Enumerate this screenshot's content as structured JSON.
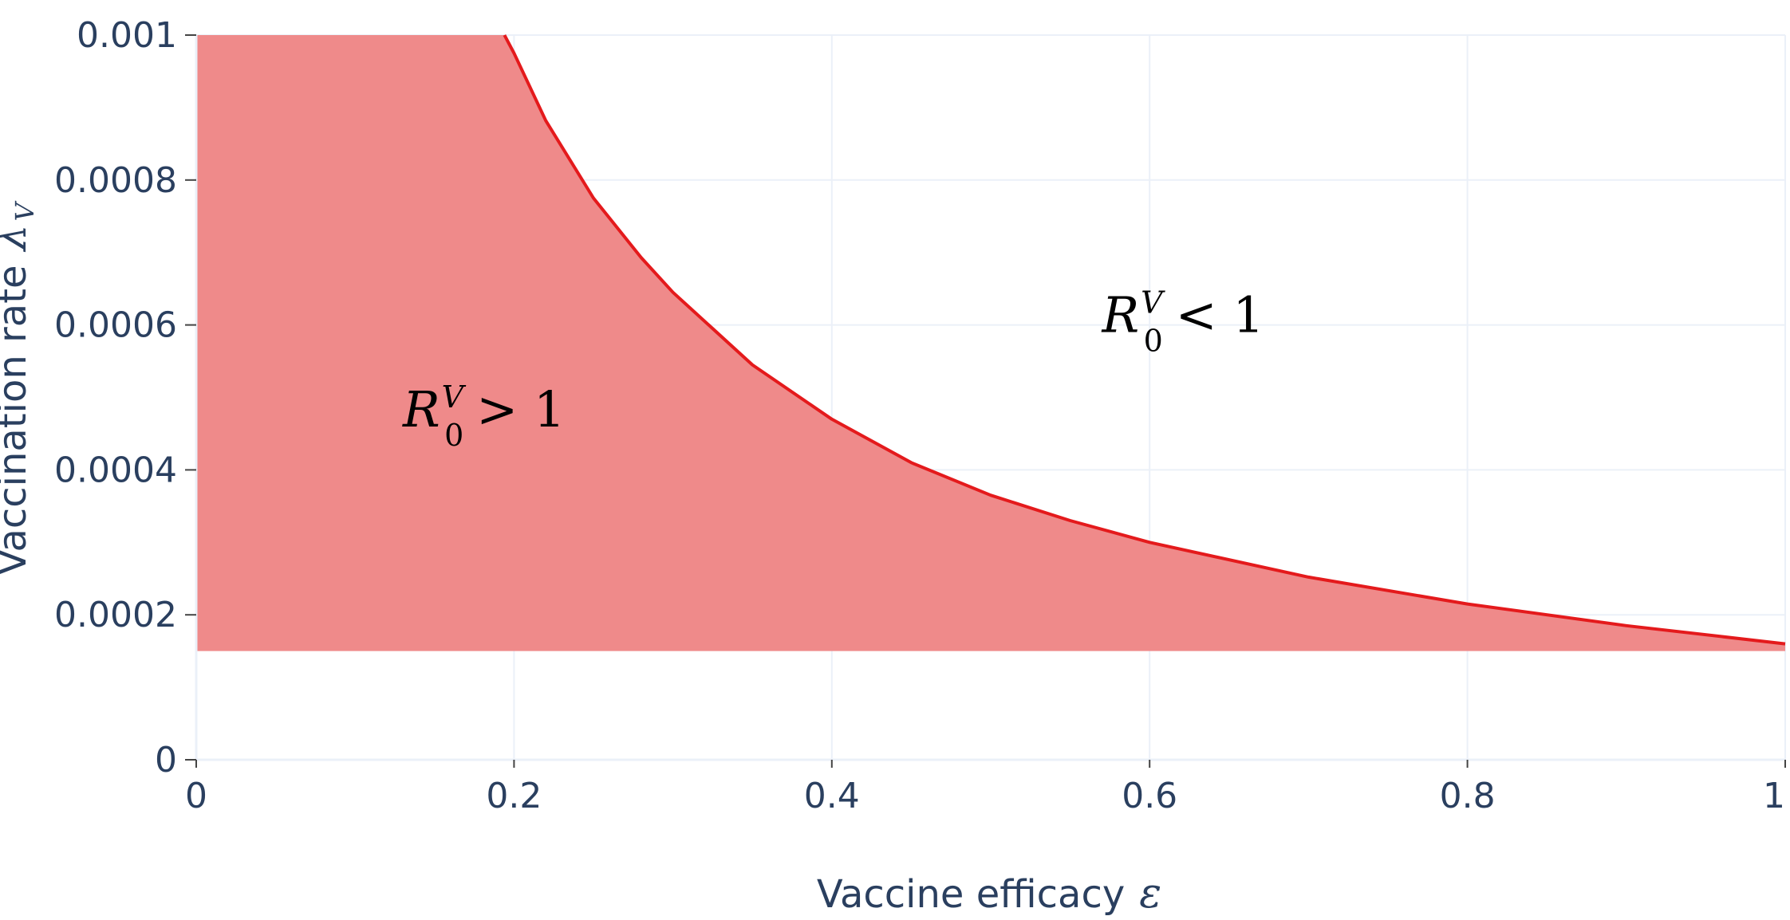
{
  "chart_data": {
    "type": "area",
    "xlabel": "Vaccine efficacy",
    "xlabel_symbol": "ε",
    "ylabel": "Vaccination rate",
    "ylabel_symbol": "λ",
    "ylabel_symbol_sub": "V",
    "xlim": [
      0,
      1
    ],
    "ylim": [
      0,
      0.001
    ],
    "x_ticks": [
      0,
      0.2,
      0.4,
      0.6,
      0.8,
      1
    ],
    "x_tick_labels": [
      "0",
      "0.2",
      "0.4",
      "0.6",
      "0.8",
      "1"
    ],
    "y_ticks": [
      0,
      0.0002,
      0.0004,
      0.0006,
      0.0008,
      0.001
    ],
    "y_tick_labels": [
      "0",
      "0.0002",
      "0.0004",
      "0.0006",
      "0.0008",
      "0.001"
    ],
    "grid": true,
    "series": [
      {
        "x": [
          0,
          0.194,
          0.2,
          0.22,
          0.25,
          0.28,
          0.3,
          0.35,
          0.4,
          0.45,
          0.5,
          0.55,
          0.6,
          0.7,
          0.8,
          0.9,
          1.0
        ],
        "y": [
          0.001,
          0.001,
          0.000975,
          0.000882,
          0.000775,
          0.000693,
          0.000645,
          0.000545,
          0.00047,
          0.00041,
          0.000365,
          0.00033,
          0.0003,
          0.000252,
          0.000215,
          0.000185,
          0.00016
        ],
        "baseline": 0.00015,
        "color": "#e41a1c",
        "fill_color": "#ef8a8a"
      }
    ],
    "annotations": [
      {
        "base": "R",
        "sub": "0",
        "sup": "V",
        "op": "> 1",
        "x": 0.13,
        "y": 0.00046
      },
      {
        "base": "R",
        "sub": "0",
        "sup": "V",
        "op": "< 1",
        "x": 0.57,
        "y": 0.00059
      }
    ]
  }
}
